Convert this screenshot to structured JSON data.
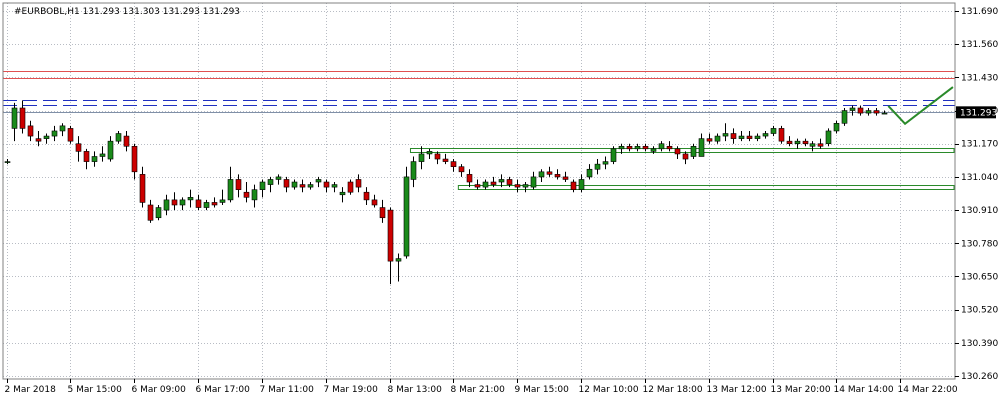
{
  "chart_data": {
    "type": "candlestick",
    "title": "#EURBOBL,H1  131.293 131.303 131.293 131.293",
    "current_price": 131.293,
    "current_price_label": "131.293",
    "ylim": [
      130.26,
      131.69
    ],
    "y_ticks": [
      "131.690",
      "131.560",
      "131.430",
      "131.300",
      "131.170",
      "131.040",
      "130.910",
      "130.780",
      "130.650",
      "130.520",
      "130.390",
      "130.260"
    ],
    "y_tick_values": [
      131.69,
      131.56,
      131.43,
      131.3,
      131.17,
      131.04,
      130.91,
      130.78,
      130.65,
      130.52,
      130.39,
      130.26
    ],
    "x_ticks": [
      "2 Mar 2018",
      "5 Mar 15:00",
      "6 Mar 09:00",
      "6 Mar 17:00",
      "7 Mar 11:00",
      "7 Mar 19:00",
      "8 Mar 13:00",
      "8 Mar 21:00",
      "9 Mar 15:00",
      "12 Mar 10:00",
      "12 Mar 18:00",
      "13 Mar 12:00",
      "13 Mar 20:00",
      "14 Mar 14:00",
      "14 Mar 22:00"
    ],
    "x_tick_positions": [
      0,
      8,
      16,
      24,
      32,
      40,
      48,
      56,
      64,
      72,
      80,
      88,
      96,
      104,
      112
    ],
    "grid": true,
    "colors": {
      "bull": "#1a8a1a",
      "bear": "#cc0000",
      "grid": "#b8bcc4",
      "resistance": "#e05050",
      "dashed": "#2030c0",
      "zone": "#2a8a2a",
      "price_line": "#8090a8"
    },
    "levels": {
      "resistance_top": 131.455,
      "resistance_bottom": 131.428,
      "dashed_top": 131.342,
      "dashed_bottom": 131.322,
      "price_line": 131.293
    },
    "zones": [
      {
        "x0": 51,
        "x1": 124,
        "y_top": 131.155,
        "y_bottom": 131.139
      },
      {
        "x0": 57,
        "x1": 124,
        "y_top": 131.008,
        "y_bottom": 130.992
      }
    ],
    "projection": [
      {
        "x": 110.5,
        "y": 131.318
      },
      {
        "x": 112.6,
        "y": 131.248
      },
      {
        "x": 118.6,
        "y": 131.392
      }
    ],
    "candles": [
      {
        "o": 131.1,
        "h": 131.11,
        "l": 131.09,
        "c": 131.1
      },
      {
        "o": 131.23,
        "h": 131.33,
        "l": 131.18,
        "c": 131.31
      },
      {
        "o": 131.31,
        "h": 131.34,
        "l": 131.21,
        "c": 131.23
      },
      {
        "o": 131.24,
        "h": 131.26,
        "l": 131.18,
        "c": 131.2
      },
      {
        "o": 131.19,
        "h": 131.22,
        "l": 131.16,
        "c": 131.18
      },
      {
        "o": 131.19,
        "h": 131.21,
        "l": 131.17,
        "c": 131.2
      },
      {
        "o": 131.2,
        "h": 131.24,
        "l": 131.18,
        "c": 131.22
      },
      {
        "o": 131.22,
        "h": 131.25,
        "l": 131.2,
        "c": 131.24
      },
      {
        "o": 131.23,
        "h": 131.24,
        "l": 131.17,
        "c": 131.18
      },
      {
        "o": 131.17,
        "h": 131.2,
        "l": 131.1,
        "c": 131.14
      },
      {
        "o": 131.14,
        "h": 131.15,
        "l": 131.07,
        "c": 131.1
      },
      {
        "o": 131.1,
        "h": 131.14,
        "l": 131.08,
        "c": 131.12
      },
      {
        "o": 131.12,
        "h": 131.16,
        "l": 131.1,
        "c": 131.13
      },
      {
        "o": 131.11,
        "h": 131.2,
        "l": 131.1,
        "c": 131.18
      },
      {
        "o": 131.18,
        "h": 131.22,
        "l": 131.17,
        "c": 131.21
      },
      {
        "o": 131.2,
        "h": 131.22,
        "l": 131.14,
        "c": 131.16
      },
      {
        "o": 131.16,
        "h": 131.17,
        "l": 131.03,
        "c": 131.06
      },
      {
        "o": 131.05,
        "h": 131.08,
        "l": 130.92,
        "c": 130.94
      },
      {
        "o": 130.93,
        "h": 130.95,
        "l": 130.86,
        "c": 130.87
      },
      {
        "o": 130.88,
        "h": 130.93,
        "l": 130.87,
        "c": 130.92
      },
      {
        "o": 130.91,
        "h": 130.97,
        "l": 130.89,
        "c": 130.95
      },
      {
        "o": 130.95,
        "h": 130.98,
        "l": 130.91,
        "c": 130.93
      },
      {
        "o": 130.93,
        "h": 130.96,
        "l": 130.91,
        "c": 130.95
      },
      {
        "o": 130.95,
        "h": 130.99,
        "l": 130.92,
        "c": 130.96
      },
      {
        "o": 130.95,
        "h": 130.97,
        "l": 130.91,
        "c": 130.92
      },
      {
        "o": 130.92,
        "h": 130.95,
        "l": 130.91,
        "c": 130.94
      },
      {
        "o": 130.94,
        "h": 130.96,
        "l": 130.92,
        "c": 130.93
      },
      {
        "o": 130.94,
        "h": 130.99,
        "l": 130.93,
        "c": 130.95
      },
      {
        "o": 130.95,
        "h": 131.08,
        "l": 130.94,
        "c": 131.03
      },
      {
        "o": 131.03,
        "h": 131.05,
        "l": 130.96,
        "c": 130.99
      },
      {
        "o": 130.98,
        "h": 131.02,
        "l": 130.94,
        "c": 130.96
      },
      {
        "o": 130.95,
        "h": 131.01,
        "l": 130.92,
        "c": 130.99
      },
      {
        "o": 130.99,
        "h": 131.03,
        "l": 130.96,
        "c": 131.02
      },
      {
        "o": 131.01,
        "h": 131.04,
        "l": 130.98,
        "c": 131.03
      },
      {
        "o": 131.03,
        "h": 131.05,
        "l": 131.01,
        "c": 131.04
      },
      {
        "o": 131.03,
        "h": 131.04,
        "l": 130.98,
        "c": 131.0
      },
      {
        "o": 131.0,
        "h": 131.03,
        "l": 130.99,
        "c": 131.02
      },
      {
        "o": 131.01,
        "h": 131.03,
        "l": 130.98,
        "c": 131.0
      },
      {
        "o": 131.0,
        "h": 131.02,
        "l": 130.99,
        "c": 131.01
      },
      {
        "o": 131.02,
        "h": 131.04,
        "l": 131.0,
        "c": 131.03
      },
      {
        "o": 131.02,
        "h": 131.03,
        "l": 130.98,
        "c": 131.0
      },
      {
        "o": 131.0,
        "h": 131.02,
        "l": 130.98,
        "c": 131.01
      },
      {
        "o": 130.97,
        "h": 131.0,
        "l": 130.94,
        "c": 130.98
      },
      {
        "o": 131.02,
        "h": 131.03,
        "l": 130.97,
        "c": 130.98
      },
      {
        "o": 131.03,
        "h": 131.05,
        "l": 130.98,
        "c": 131.0
      },
      {
        "o": 130.98,
        "h": 131.0,
        "l": 130.93,
        "c": 130.95
      },
      {
        "o": 130.95,
        "h": 130.97,
        "l": 130.92,
        "c": 130.93
      },
      {
        "o": 130.92,
        "h": 130.95,
        "l": 130.86,
        "c": 130.88
      },
      {
        "o": 130.91,
        "h": 130.92,
        "l": 130.62,
        "c": 130.71
      },
      {
        "o": 130.71,
        "h": 130.74,
        "l": 130.63,
        "c": 130.72
      },
      {
        "o": 130.73,
        "h": 131.08,
        "l": 130.72,
        "c": 131.04
      },
      {
        "o": 131.03,
        "h": 131.12,
        "l": 131.0,
        "c": 131.1
      },
      {
        "o": 131.1,
        "h": 131.16,
        "l": 131.07,
        "c": 131.13
      },
      {
        "o": 131.13,
        "h": 131.15,
        "l": 131.11,
        "c": 131.14
      },
      {
        "o": 131.13,
        "h": 131.14,
        "l": 131.09,
        "c": 131.11
      },
      {
        "o": 131.11,
        "h": 131.13,
        "l": 131.09,
        "c": 131.1
      },
      {
        "o": 131.1,
        "h": 131.11,
        "l": 131.06,
        "c": 131.08
      },
      {
        "o": 131.08,
        "h": 131.09,
        "l": 131.04,
        "c": 131.06
      },
      {
        "o": 131.05,
        "h": 131.07,
        "l": 131.0,
        "c": 131.02
      },
      {
        "o": 131.01,
        "h": 131.03,
        "l": 130.99,
        "c": 131.0
      },
      {
        "o": 131.0,
        "h": 131.03,
        "l": 130.99,
        "c": 131.02
      },
      {
        "o": 131.02,
        "h": 131.04,
        "l": 131.0,
        "c": 131.01
      },
      {
        "o": 131.02,
        "h": 131.05,
        "l": 131.0,
        "c": 131.03
      },
      {
        "o": 131.03,
        "h": 131.04,
        "l": 131.0,
        "c": 131.01
      },
      {
        "o": 131.01,
        "h": 131.03,
        "l": 130.98,
        "c": 131.0
      },
      {
        "o": 131.0,
        "h": 131.02,
        "l": 130.98,
        "c": 131.01
      },
      {
        "o": 131.0,
        "h": 131.06,
        "l": 130.99,
        "c": 131.04
      },
      {
        "o": 131.04,
        "h": 131.07,
        "l": 131.02,
        "c": 131.06
      },
      {
        "o": 131.06,
        "h": 131.08,
        "l": 131.04,
        "c": 131.05
      },
      {
        "o": 131.05,
        "h": 131.07,
        "l": 131.03,
        "c": 131.04
      },
      {
        "o": 131.04,
        "h": 131.06,
        "l": 131.02,
        "c": 131.03
      },
      {
        "o": 131.02,
        "h": 131.03,
        "l": 130.98,
        "c": 130.99
      },
      {
        "o": 130.99,
        "h": 131.05,
        "l": 130.98,
        "c": 131.03
      },
      {
        "o": 131.04,
        "h": 131.09,
        "l": 131.03,
        "c": 131.07
      },
      {
        "o": 131.07,
        "h": 131.11,
        "l": 131.05,
        "c": 131.09
      },
      {
        "o": 131.09,
        "h": 131.12,
        "l": 131.07,
        "c": 131.1
      },
      {
        "o": 131.1,
        "h": 131.16,
        "l": 131.09,
        "c": 131.15
      },
      {
        "o": 131.15,
        "h": 131.17,
        "l": 131.13,
        "c": 131.16
      },
      {
        "o": 131.16,
        "h": 131.17,
        "l": 131.14,
        "c": 131.15
      },
      {
        "o": 131.15,
        "h": 131.17,
        "l": 131.14,
        "c": 131.16
      },
      {
        "o": 131.16,
        "h": 131.17,
        "l": 131.14,
        "c": 131.15
      },
      {
        "o": 131.14,
        "h": 131.16,
        "l": 131.13,
        "c": 131.15
      },
      {
        "o": 131.15,
        "h": 131.18,
        "l": 131.14,
        "c": 131.17
      },
      {
        "o": 131.16,
        "h": 131.18,
        "l": 131.14,
        "c": 131.15
      },
      {
        "o": 131.15,
        "h": 131.16,
        "l": 131.11,
        "c": 131.13
      },
      {
        "o": 131.13,
        "h": 131.14,
        "l": 131.09,
        "c": 131.11
      },
      {
        "o": 131.12,
        "h": 131.17,
        "l": 131.11,
        "c": 131.16
      },
      {
        "o": 131.12,
        "h": 131.21,
        "l": 131.12,
        "c": 131.19
      },
      {
        "o": 131.19,
        "h": 131.21,
        "l": 131.17,
        "c": 131.18
      },
      {
        "o": 131.18,
        "h": 131.21,
        "l": 131.17,
        "c": 131.2
      },
      {
        "o": 131.2,
        "h": 131.25,
        "l": 131.18,
        "c": 131.21
      },
      {
        "o": 131.21,
        "h": 131.23,
        "l": 131.17,
        "c": 131.19
      },
      {
        "o": 131.19,
        "h": 131.22,
        "l": 131.18,
        "c": 131.2
      },
      {
        "o": 131.2,
        "h": 131.22,
        "l": 131.18,
        "c": 131.19
      },
      {
        "o": 131.19,
        "h": 131.21,
        "l": 131.18,
        "c": 131.2
      },
      {
        "o": 131.2,
        "h": 131.22,
        "l": 131.19,
        "c": 131.21
      },
      {
        "o": 131.21,
        "h": 131.24,
        "l": 131.2,
        "c": 131.23
      },
      {
        "o": 131.23,
        "h": 131.24,
        "l": 131.17,
        "c": 131.18
      },
      {
        "o": 131.18,
        "h": 131.2,
        "l": 131.16,
        "c": 131.17
      },
      {
        "o": 131.17,
        "h": 131.19,
        "l": 131.15,
        "c": 131.18
      },
      {
        "o": 131.18,
        "h": 131.19,
        "l": 131.16,
        "c": 131.17
      },
      {
        "o": 131.16,
        "h": 131.18,
        "l": 131.14,
        "c": 131.17
      },
      {
        "o": 131.17,
        "h": 131.19,
        "l": 131.15,
        "c": 131.16
      },
      {
        "o": 131.17,
        "h": 131.23,
        "l": 131.16,
        "c": 131.22
      },
      {
        "o": 131.22,
        "h": 131.26,
        "l": 131.21,
        "c": 131.25
      },
      {
        "o": 131.25,
        "h": 131.31,
        "l": 131.24,
        "c": 131.3
      },
      {
        "o": 131.3,
        "h": 131.32,
        "l": 131.28,
        "c": 131.31
      },
      {
        "o": 131.31,
        "h": 131.32,
        "l": 131.28,
        "c": 131.29
      },
      {
        "o": 131.29,
        "h": 131.31,
        "l": 131.28,
        "c": 131.3
      },
      {
        "o": 131.3,
        "h": 131.31,
        "l": 131.28,
        "c": 131.29
      },
      {
        "o": 131.29,
        "h": 131.3,
        "l": 131.29,
        "c": 131.29
      }
    ]
  }
}
